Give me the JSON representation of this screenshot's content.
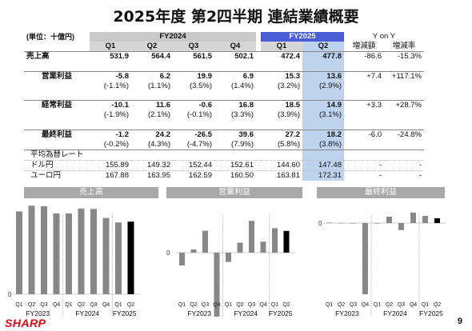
{
  "title": "2025年度 第2四半期 連結業績概要",
  "unit_label": "(単位：十億円)",
  "fy2024_label": "FY2024",
  "fy2025_label": "FY2025",
  "yony_label": "Y on Y",
  "diff_label": "増減額",
  "rate_label": "増減率",
  "quarters": [
    "Q1",
    "Q2",
    "Q3",
    "Q4",
    "Q1",
    "Q2"
  ],
  "rows": [
    {
      "label": "売上高",
      "values": [
        "531.9",
        "564.4",
        "561.5",
        "502.1",
        "472.4",
        "477.8"
      ],
      "diff": "-86.6",
      "rate": "-15.3%",
      "sub": null
    },
    {
      "label": "営業利益",
      "values": [
        "-5.8",
        "6.2",
        "19.9",
        "6.9",
        "15.3",
        "13.6"
      ],
      "diff": "+7.4",
      "rate": "+117.1%",
      "sub": [
        "(-1.1%)",
        "(1.1%)",
        "(3.5%)",
        "(1.4%)",
        "(3.2%)",
        "(2.9%)"
      ]
    },
    {
      "label": "経常利益",
      "values": [
        "-10.1",
        "11.6",
        "-0.6",
        "16.8",
        "18.5",
        "14.9"
      ],
      "diff": "+3.3",
      "rate": "+28.7%",
      "sub": [
        "(-1.9%)",
        "(2.1%)",
        "(-0.1%)",
        "(3.3%)",
        "(3.9%)",
        "(3.1%)"
      ]
    },
    {
      "label": "最終利益",
      "values": [
        "-1.2",
        "24.2",
        "-26.5",
        "39.6",
        "27.2",
        "18.2"
      ],
      "diff": "-6.0",
      "rate": "-24.8%",
      "sub": [
        "(-0.2%)",
        "(4.3%)",
        "(-4.7%)",
        "(7.9%)",
        "(5.8%)",
        "(3.8%)"
      ]
    }
  ],
  "fx_title": "平均為替レート",
  "fx_rows": [
    {
      "label": "ドル円",
      "values": [
        "155.89",
        "149.32",
        "152.44",
        "152.61",
        "144.60",
        "147.48"
      ],
      "diff": "-",
      "rate": "-"
    },
    {
      "label": "ユーロ円",
      "values": [
        "167.88",
        "163.95",
        "162.59",
        "160.50",
        "163.81",
        "172.31"
      ],
      "diff": "-",
      "rate": "-"
    }
  ],
  "chart_titles": [
    "売上高",
    "営業利益",
    "最終利益"
  ],
  "chart_data": [
    {
      "type": "bar",
      "title": "売上高",
      "categories": [
        "Q1",
        "Q2",
        "Q3",
        "Q4",
        "Q1",
        "Q2",
        "Q3",
        "Q4",
        "Q1",
        "Q2"
      ],
      "groups": [
        "FY2023",
        "FY2024",
        "FY2025"
      ],
      "values": [
        545,
        583,
        579,
        532,
        531.9,
        564.4,
        561.5,
        502.1,
        472.4,
        477.8
      ],
      "zero_label": "0"
    },
    {
      "type": "bar",
      "title": "営業利益",
      "categories": [
        "Q1",
        "Q2",
        "Q3",
        "Q4",
        "Q1",
        "Q2",
        "Q3",
        "Q4",
        "Q1",
        "Q2"
      ],
      "groups": [
        "FY2023",
        "FY2024",
        "FY2025"
      ],
      "values": [
        -8,
        2,
        13.7,
        -40,
        -5.8,
        6.2,
        19.9,
        6.9,
        15.3,
        13.6
      ],
      "zero_label": "0"
    },
    {
      "type": "bar",
      "title": "最終利益",
      "categories": [
        "Q1",
        "Q2",
        "Q3",
        "Q4",
        "Q1",
        "Q2",
        "Q3",
        "Q4",
        "Q1",
        "Q2"
      ],
      "groups": [
        "FY2023",
        "FY2024",
        "FY2025"
      ],
      "values": [
        2,
        0.5,
        -0.5,
        -270,
        -1.2,
        24.2,
        -26.5,
        39.6,
        27.2,
        18.2
      ],
      "zero_label": "0"
    }
  ],
  "logo": "SHARP",
  "page_number": "9"
}
